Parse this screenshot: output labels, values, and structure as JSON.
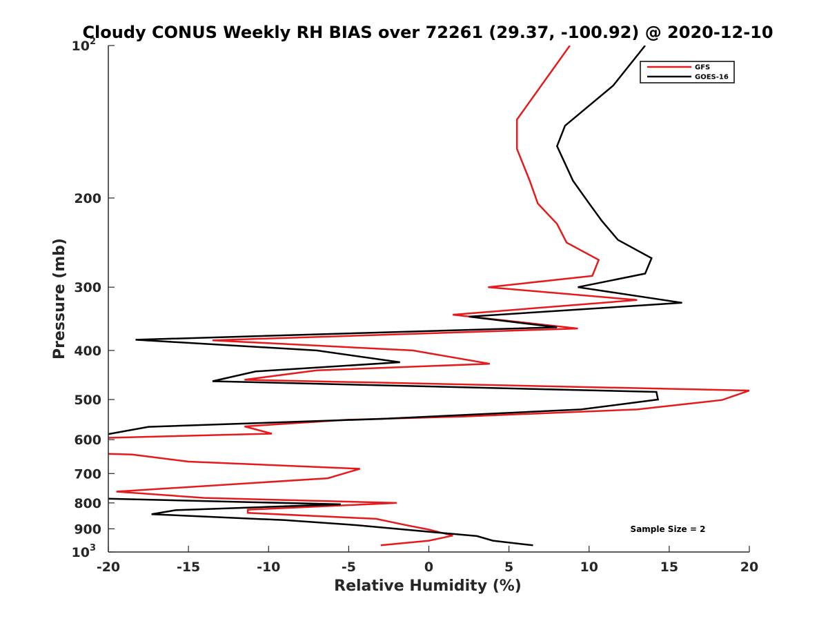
{
  "chart_data": {
    "type": "line",
    "title": "Cloudy CONUS Weekly RH BIAS over 72261 (29.37, -100.92) @ 2020-12-10",
    "xlabel": "Relative Humidity (%)",
    "ylabel": "Pressure (mb)",
    "xlim": [
      -20,
      20
    ],
    "ylim": [
      100,
      1000
    ],
    "y_scale": "log",
    "y_reversed": true,
    "grid": false,
    "legend_position": "top-right",
    "x_ticks": [
      {
        "value": -20,
        "label": "-20"
      },
      {
        "value": -15,
        "label": "-15"
      },
      {
        "value": -10,
        "label": "-10"
      },
      {
        "value": -5,
        "label": "-5"
      },
      {
        "value": 0,
        "label": "0"
      },
      {
        "value": 5,
        "label": "5"
      },
      {
        "value": 10,
        "label": "10"
      },
      {
        "value": 15,
        "label": "15"
      },
      {
        "value": 20,
        "label": "20"
      }
    ],
    "y_ticks": [
      {
        "value": 100,
        "label": "10",
        "sup": "2"
      },
      {
        "value": 200,
        "label": "200",
        "sup": ""
      },
      {
        "value": 300,
        "label": "300",
        "sup": ""
      },
      {
        "value": 400,
        "label": "400",
        "sup": ""
      },
      {
        "value": 500,
        "label": "500",
        "sup": ""
      },
      {
        "value": 600,
        "label": "600",
        "sup": ""
      },
      {
        "value": 700,
        "label": "700",
        "sup": ""
      },
      {
        "value": 800,
        "label": "800",
        "sup": ""
      },
      {
        "value": 900,
        "label": "900",
        "sup": ""
      },
      {
        "value": 1000,
        "label": "10",
        "sup": "3"
      }
    ],
    "annotation": "Sample Size = 2",
    "series": [
      {
        "name": "GFS",
        "color": "#e41a1c",
        "points": [
          {
            "x": 8.8,
            "y": 100
          },
          {
            "x": 5.5,
            "y": 140
          },
          {
            "x": 5.5,
            "y": 160
          },
          {
            "x": 6.3,
            "y": 185
          },
          {
            "x": 6.8,
            "y": 205
          },
          {
            "x": 8.0,
            "y": 225
          },
          {
            "x": 8.6,
            "y": 245
          },
          {
            "x": 10.6,
            "y": 265
          },
          {
            "x": 10.2,
            "y": 285
          },
          {
            "x": 3.7,
            "y": 300
          },
          {
            "x": 13.0,
            "y": 318
          },
          {
            "x": 1.5,
            "y": 340
          },
          {
            "x": 9.3,
            "y": 362
          },
          {
            "x": -13.5,
            "y": 382
          },
          {
            "x": -1.0,
            "y": 400
          },
          {
            "x": 3.8,
            "y": 425
          },
          {
            "x": -7.0,
            "y": 438
          },
          {
            "x": -11.5,
            "y": 457
          },
          {
            "x": 20.0,
            "y": 480
          },
          {
            "x": 18.3,
            "y": 501
          },
          {
            "x": 13.0,
            "y": 523
          },
          {
            "x": 2.2,
            "y": 540
          },
          {
            "x": -5.0,
            "y": 548
          },
          {
            "x": -11.5,
            "y": 565
          },
          {
            "x": -9.8,
            "y": 584
          },
          {
            "x": -20.0,
            "y": 595
          },
          {
            "x": null,
            "y": 615
          },
          {
            "x": -20.0,
            "y": 640
          },
          {
            "x": -18.5,
            "y": 642
          },
          {
            "x": -15.0,
            "y": 663
          },
          {
            "x": -4.3,
            "y": 685
          },
          {
            "x": -6.3,
            "y": 715
          },
          {
            "x": -19.5,
            "y": 760
          },
          {
            "x": -14.0,
            "y": 782
          },
          {
            "x": -2.0,
            "y": 800
          },
          {
            "x": -11.3,
            "y": 825
          },
          {
            "x": -11.3,
            "y": 837
          },
          {
            "x": -3.3,
            "y": 860
          },
          {
            "x": -1.5,
            "y": 884
          },
          {
            "x": 0.0,
            "y": 903
          },
          {
            "x": 1.5,
            "y": 928
          },
          {
            "x": 0.0,
            "y": 950
          },
          {
            "x": -3.0,
            "y": 970
          }
        ]
      },
      {
        "name": "GOES-16",
        "color": "#000000",
        "points": [
          {
            "x": 13.5,
            "y": 100
          },
          {
            "x": 11.5,
            "y": 120
          },
          {
            "x": 8.5,
            "y": 144
          },
          {
            "x": 8.0,
            "y": 158
          },
          {
            "x": 9.0,
            "y": 185
          },
          {
            "x": 10.0,
            "y": 205
          },
          {
            "x": 10.8,
            "y": 222
          },
          {
            "x": 11.8,
            "y": 242
          },
          {
            "x": 13.9,
            "y": 263
          },
          {
            "x": 13.5,
            "y": 282
          },
          {
            "x": 9.3,
            "y": 300
          },
          {
            "x": 15.8,
            "y": 322
          },
          {
            "x": 2.5,
            "y": 343
          },
          {
            "x": 8.0,
            "y": 360
          },
          {
            "x": -18.3,
            "y": 381
          },
          {
            "x": -7.0,
            "y": 400
          },
          {
            "x": -1.8,
            "y": 422
          },
          {
            "x": -10.8,
            "y": 440
          },
          {
            "x": -13.5,
            "y": 460
          },
          {
            "x": 14.2,
            "y": 483
          },
          {
            "x": 14.3,
            "y": 500
          },
          {
            "x": 9.5,
            "y": 523
          },
          {
            "x": -3.0,
            "y": 546
          },
          {
            "x": -17.5,
            "y": 566
          },
          {
            "x": -20.0,
            "y": 585
          },
          {
            "x": null,
            "y": 700
          },
          {
            "x": -20.0,
            "y": 785
          },
          {
            "x": -5.5,
            "y": 805
          },
          {
            "x": -15.8,
            "y": 827
          },
          {
            "x": -17.3,
            "y": 842
          },
          {
            "x": -9.0,
            "y": 865
          },
          {
            "x": -4.5,
            "y": 885
          },
          {
            "x": -1.5,
            "y": 903
          },
          {
            "x": 3.0,
            "y": 930
          },
          {
            "x": 4.0,
            "y": 950
          },
          {
            "x": 6.5,
            "y": 970
          }
        ]
      }
    ]
  }
}
